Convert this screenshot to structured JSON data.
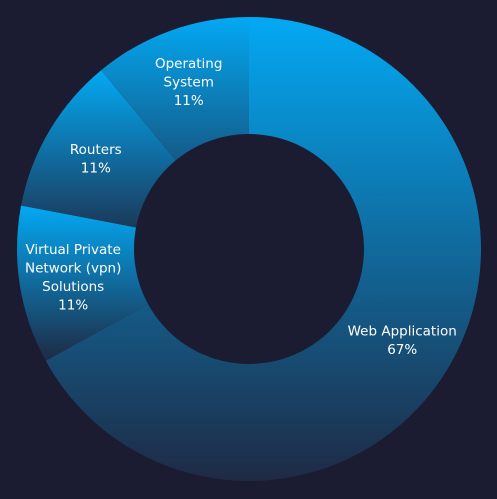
{
  "chart_data": {
    "type": "pie",
    "variant": "donut",
    "slices": [
      {
        "label": [
          "Web Application"
        ],
        "value": 67,
        "display": "67%"
      },
      {
        "label": [
          "Virtual Private",
          "Network (vpn)",
          "Solutions"
        ],
        "value": 11,
        "display": "11%"
      },
      {
        "label": [
          "Routers"
        ],
        "value": 11,
        "display": "11%"
      },
      {
        "label": [
          "Operating",
          "System"
        ],
        "value": 11,
        "display": "11%"
      }
    ]
  },
  "colors": {
    "background": "#1b1c31",
    "gradient_top": "#03a9f4",
    "gradient_bottom": "#1e2a44",
    "hole": "#1b1c31"
  }
}
